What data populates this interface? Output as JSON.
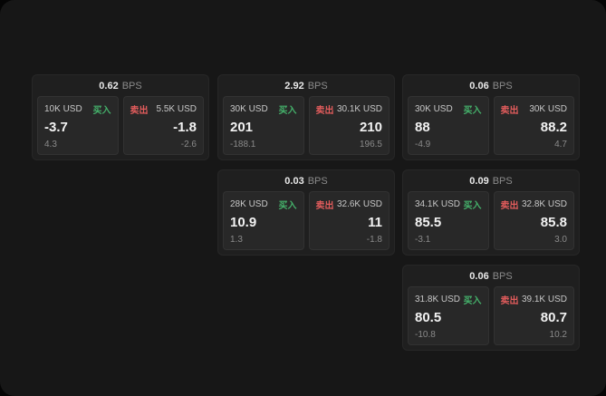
{
  "colors": {
    "buy-color": "#45b26b",
    "sell-color": "#e25c5c"
  },
  "cards": [
    {
      "bps": "0.62",
      "unit": "BPS",
      "buy": {
        "size": "10K USD",
        "action": "买入",
        "price": "-3.7",
        "change": "4.3"
      },
      "sell": {
        "action": "卖出",
        "size": "5.5K USD",
        "price": "-1.8",
        "change": "-2.6"
      }
    },
    {
      "bps": "2.92",
      "unit": "BPS",
      "buy": {
        "size": "30K USD",
        "action": "买入",
        "price": "201",
        "change": "-188.1"
      },
      "sell": {
        "action": "卖出",
        "size": "30.1K USD",
        "price": "210",
        "change": "196.5"
      }
    },
    {
      "bps": "0.06",
      "unit": "BPS",
      "buy": {
        "size": "30K USD",
        "action": "买入",
        "price": "88",
        "change": "-4.9"
      },
      "sell": {
        "action": "卖出",
        "size": "30K USD",
        "price": "88.2",
        "change": "4.7"
      }
    },
    {
      "bps": "0.03",
      "unit": "BPS",
      "buy": {
        "size": "28K USD",
        "action": "买入",
        "price": "10.9",
        "change": "1.3"
      },
      "sell": {
        "action": "卖出",
        "size": "32.6K USD",
        "price": "11",
        "change": "-1.8"
      }
    },
    {
      "bps": "0.09",
      "unit": "BPS",
      "buy": {
        "size": "34.1K USD",
        "action": "买入",
        "price": "85.5",
        "change": "-3.1"
      },
      "sell": {
        "action": "卖出",
        "size": "32.8K USD",
        "price": "85.8",
        "change": "3.0"
      }
    },
    {
      "bps": "0.06",
      "unit": "BPS",
      "buy": {
        "size": "31.8K USD",
        "action": "买入",
        "price": "80.5",
        "change": "-10.8"
      },
      "sell": {
        "action": "卖出",
        "size": "39.1K USD",
        "price": "80.7",
        "change": "10.2"
      }
    }
  ]
}
